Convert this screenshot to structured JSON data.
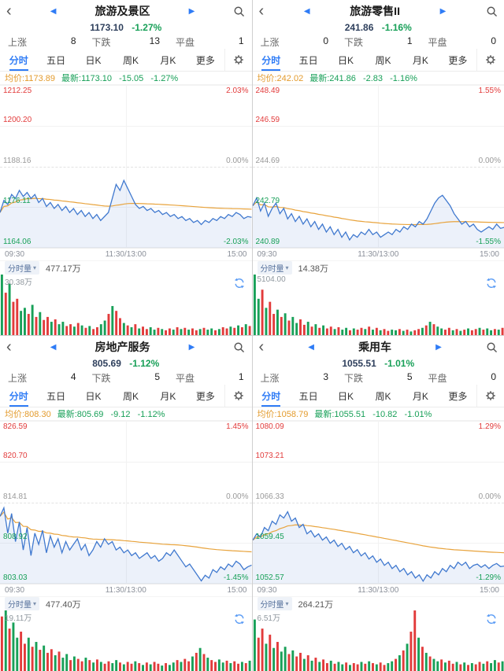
{
  "colors": {
    "accent_blue": "#2f7cf6",
    "up": "#e23b3b",
    "down": "#18a058",
    "price_line": "#4079cf",
    "avg_line": "#e8a33c",
    "area": "rgba(64,121,207,0.10)"
  },
  "icons": {
    "back": "‹",
    "prev": "◀",
    "next": "▶",
    "caret_down": "▾"
  },
  "stats_labels": {
    "up": "上涨",
    "down": "下跌",
    "flat": "平盘"
  },
  "tabs": {
    "items": [
      "分时",
      "五日",
      "日K",
      "周K",
      "月K",
      "更多"
    ],
    "active": "分时"
  },
  "volume_label": "分时量",
  "panels": [
    {
      "title": "旅游及景区",
      "price": "1173.10",
      "change_pct": "-1.27%",
      "stats": {
        "up": "8",
        "down": "13",
        "flat": "1"
      },
      "info": {
        "avg": "均价:1173.89",
        "last": "最新:1173.10",
        "change": "-15.05",
        "pct": "-1.27%"
      },
      "y_labels": [
        "1212.25",
        "1200.20",
        "1188.16",
        "1176.11",
        "1164.06"
      ],
      "pct_labels": [
        "2.03%",
        "0.00%",
        "-2.03%"
      ],
      "times": [
        "09:30",
        "11:30/13:00",
        "15:00"
      ],
      "volume_value": "477.17万",
      "volume_scale": "30.38万"
    },
    {
      "title": "旅游零售II",
      "price": "241.86",
      "change_pct": "-1.16%",
      "stats": {
        "up": "0",
        "down": "1",
        "flat": "0"
      },
      "info": {
        "avg": "均价:242.02",
        "last": "最新:241.86",
        "change": "-2.83",
        "pct": "-1.16%"
      },
      "y_labels": [
        "248.49",
        "246.59",
        "244.69",
        "242.79",
        "240.89"
      ],
      "pct_labels": [
        "1.55%",
        "0.00%",
        "-1.55%"
      ],
      "times": [
        "09:30",
        "11:30/13:00",
        "15:00"
      ],
      "volume_value": "14.38万",
      "volume_scale": "5104.00"
    },
    {
      "title": "房地产服务",
      "price": "805.69",
      "change_pct": "-1.12%",
      "stats": {
        "up": "4",
        "down": "5",
        "flat": "1"
      },
      "info": {
        "avg": "均价:808.30",
        "last": "最新:805.69",
        "change": "-9.12",
        "pct": "-1.12%"
      },
      "y_labels": [
        "826.59",
        "820.70",
        "814.81",
        "808.92",
        "803.03"
      ],
      "pct_labels": [
        "1.45%",
        "0.00%",
        "-1.45%"
      ],
      "times": [
        "09:30",
        "11:30/13:00",
        "15:00"
      ],
      "volume_value": "477.40万",
      "volume_scale": "19.11万"
    },
    {
      "title": "乘用车",
      "price": "1055.51",
      "change_pct": "-1.01%",
      "stats": {
        "up": "3",
        "down": "5",
        "flat": "0"
      },
      "info": {
        "avg": "均价:1058.79",
        "last": "最新:1055.51",
        "change": "-10.82",
        "pct": "-1.01%"
      },
      "y_labels": [
        "1080.09",
        "1073.21",
        "1066.33",
        "1059.45",
        "1052.57"
      ],
      "pct_labels": [
        "1.29%",
        "0.00%",
        "-1.29%"
      ],
      "times": [
        "09:30",
        "11:30/13:00",
        "15:00"
      ],
      "volume_value": "264.21万",
      "volume_scale": "6.51万"
    }
  ],
  "chart_data": [
    {
      "name": "旅游及景区",
      "type": "line",
      "baseline": 1188.16,
      "range_pct": 2.03,
      "series_pct": [
        -1.15,
        -0.85,
        -0.95,
        -0.7,
        -0.8,
        -0.6,
        -0.75,
        -0.65,
        -0.8,
        -0.7,
        -0.9,
        -0.8,
        -1.0,
        -0.9,
        -1.05,
        -0.95,
        -1.1,
        -1.0,
        -1.15,
        -1.05,
        -1.2,
        -1.1,
        -1.25,
        -1.15,
        -1.3,
        -1.2,
        -1.35,
        -1.25,
        -1.15,
        -0.8,
        -0.45,
        -0.6,
        -0.35,
        -0.55,
        -0.75,
        -0.95,
        -1.05,
        -1.0,
        -1.1,
        -1.05,
        -1.15,
        -1.1,
        -1.2,
        -1.15,
        -1.25,
        -1.2,
        -1.3,
        -1.25,
        -1.35,
        -1.3,
        -1.4,
        -1.35,
        -1.45,
        -1.35,
        -1.4,
        -1.3,
        -1.35,
        -1.25,
        -1.3,
        -1.2,
        -1.25,
        -1.15,
        -1.2,
        -1.3,
        -1.25,
        -1.27
      ],
      "volume": [
        100,
        70,
        85,
        55,
        60,
        40,
        45,
        35,
        50,
        30,
        38,
        25,
        30,
        22,
        26,
        18,
        22,
        15,
        18,
        14,
        20,
        16,
        12,
        15,
        10,
        13,
        18,
        24,
        35,
        48,
        40,
        28,
        20,
        16,
        13,
        18,
        11,
        14,
        10,
        13,
        9,
        12,
        10,
        8,
        11,
        9,
        13,
        10,
        12,
        9,
        11,
        8,
        10,
        12,
        9,
        11,
        8,
        10,
        13,
        11,
        14,
        12,
        16,
        13,
        18,
        15
      ],
      "volume_colors": "grgrrggrgrgrrgrggrrgrgrgrrggrgrrgrgrgrrggrgrrgrgrgrrgrggrgrrgrgrgr"
    },
    {
      "name": "旅游零售II",
      "type": "line",
      "baseline": 244.69,
      "range_pct": 1.55,
      "series_pct": [
        -0.75,
        -0.6,
        -0.85,
        -0.7,
        -0.95,
        -0.8,
        -0.7,
        -0.9,
        -0.8,
        -1.0,
        -0.9,
        -1.05,
        -0.95,
        -1.1,
        -1.0,
        -1.15,
        -1.05,
        -1.2,
        -1.1,
        -1.25,
        -1.15,
        -1.3,
        -1.2,
        -1.35,
        -1.25,
        -1.4,
        -1.3,
        -1.35,
        -1.25,
        -1.3,
        -1.2,
        -1.3,
        -1.25,
        -1.35,
        -1.3,
        -1.25,
        -1.3,
        -1.2,
        -1.25,
        -1.15,
        -1.2,
        -1.1,
        -1.15,
        -1.05,
        -1.1,
        -1.0,
        -0.85,
        -0.7,
        -0.6,
        -0.55,
        -0.65,
        -0.75,
        -0.9,
        -1.0,
        -1.1,
        -1.05,
        -1.15,
        -1.1,
        -1.2,
        -1.25,
        -1.2,
        -1.15,
        -1.2,
        -1.1,
        -1.18,
        -1.16
      ],
      "volume": [
        100,
        60,
        75,
        45,
        55,
        35,
        42,
        30,
        36,
        24,
        30,
        20,
        26,
        17,
        22,
        14,
        18,
        12,
        16,
        11,
        14,
        10,
        13,
        9,
        12,
        8,
        11,
        9,
        12,
        10,
        14,
        9,
        12,
        8,
        10,
        7,
        9,
        8,
        10,
        7,
        9,
        6,
        8,
        10,
        12,
        16,
        22,
        18,
        14,
        11,
        9,
        12,
        8,
        10,
        7,
        9,
        11,
        8,
        10,
        12,
        9,
        11,
        8,
        10,
        9,
        12
      ],
      "volume_colors": "ggrgrrgrgrggrrgrgrgrrgrggrgrrgrgrgrrggrgrgrrgrgrggrrgrgrgrrgrggrgr"
    },
    {
      "name": "房地产服务",
      "type": "line",
      "baseline": 814.81,
      "range_pct": 1.45,
      "series_pct": [
        -0.25,
        -0.1,
        -0.55,
        -0.2,
        -0.7,
        -0.35,
        -0.85,
        -0.45,
        -0.95,
        -0.55,
        -0.75,
        -0.5,
        -0.9,
        -0.6,
        -0.8,
        -0.65,
        -0.9,
        -0.7,
        -0.85,
        -0.75,
        -0.65,
        -0.85,
        -0.75,
        -0.95,
        -0.85,
        -0.7,
        -0.8,
        -0.65,
        -0.75,
        -0.7,
        -0.85,
        -0.8,
        -0.9,
        -0.85,
        -0.95,
        -0.9,
        -1.0,
        -0.95,
        -0.9,
        -1.0,
        -0.95,
        -1.05,
        -1.0,
        -0.9,
        -0.95,
        -0.85,
        -0.95,
        -1.05,
        -1.15,
        -1.1,
        -1.2,
        -1.3,
        -1.4,
        -1.3,
        -1.35,
        -1.2,
        -1.25,
        -1.15,
        -1.2,
        -1.1,
        -1.15,
        -1.05,
        -1.1,
        -1.2,
        -1.15,
        -1.12
      ],
      "volume": [
        90,
        100,
        70,
        80,
        55,
        65,
        45,
        55,
        40,
        48,
        35,
        42,
        30,
        36,
        26,
        32,
        22,
        28,
        18,
        24,
        20,
        16,
        22,
        18,
        14,
        19,
        15,
        12,
        16,
        13,
        18,
        14,
        11,
        15,
        12,
        16,
        13,
        10,
        14,
        11,
        15,
        12,
        9,
        13,
        10,
        14,
        18,
        15,
        20,
        16,
        24,
        30,
        38,
        28,
        22,
        18,
        15,
        19,
        14,
        17,
        13,
        16,
        12,
        15,
        13,
        17
      ],
      "volume_colors": "rgrggrrgrgrgrrgrggrgrrgrgrgrrggrgrrgrgrgrrgrggrgrrgrgrgrrggrgrrgrg"
    },
    {
      "name": "乘用车",
      "type": "line",
      "baseline": 1066.33,
      "range_pct": 1.29,
      "series_pct": [
        -0.6,
        -0.5,
        -0.55,
        -0.4,
        -0.45,
        -0.3,
        -0.35,
        -0.2,
        -0.25,
        -0.15,
        -0.3,
        -0.25,
        -0.4,
        -0.35,
        -0.5,
        -0.45,
        -0.55,
        -0.5,
        -0.6,
        -0.55,
        -0.65,
        -0.6,
        -0.7,
        -0.65,
        -0.75,
        -0.7,
        -0.8,
        -0.75,
        -0.85,
        -0.8,
        -0.9,
        -0.85,
        -0.95,
        -0.9,
        -1.0,
        -0.95,
        -1.05,
        -1.0,
        -1.1,
        -1.05,
        -1.15,
        -1.1,
        -1.2,
        -1.15,
        -1.25,
        -1.15,
        -1.2,
        -1.1,
        -1.15,
        -1.05,
        -1.1,
        -1.0,
        -1.05,
        -0.95,
        -1.0,
        -0.95,
        -1.05,
        -1.0,
        -0.98,
        -1.03,
        -0.99,
        -1.05,
        -1.0,
        -0.97,
        -1.02,
        -1.01
      ],
      "volume": [
        85,
        55,
        70,
        45,
        60,
        38,
        48,
        32,
        40,
        28,
        34,
        24,
        30,
        20,
        26,
        17,
        22,
        15,
        19,
        13,
        17,
        12,
        15,
        11,
        14,
        10,
        13,
        11,
        15,
        12,
        16,
        13,
        11,
        14,
        10,
        13,
        16,
        20,
        26,
        34,
        45,
        65,
        100,
        55,
        40,
        30,
        24,
        20,
        16,
        19,
        14,
        17,
        12,
        15,
        11,
        14,
        10,
        13,
        11,
        15,
        12,
        16,
        13,
        18,
        14,
        16
      ],
      "volume_colors": "grrgrgrggrgrrgrgrgrrgrggrgrrgrgrgrrggrgrgrrgrgrggrgrrgrgrgrrgrggrg"
    }
  ]
}
